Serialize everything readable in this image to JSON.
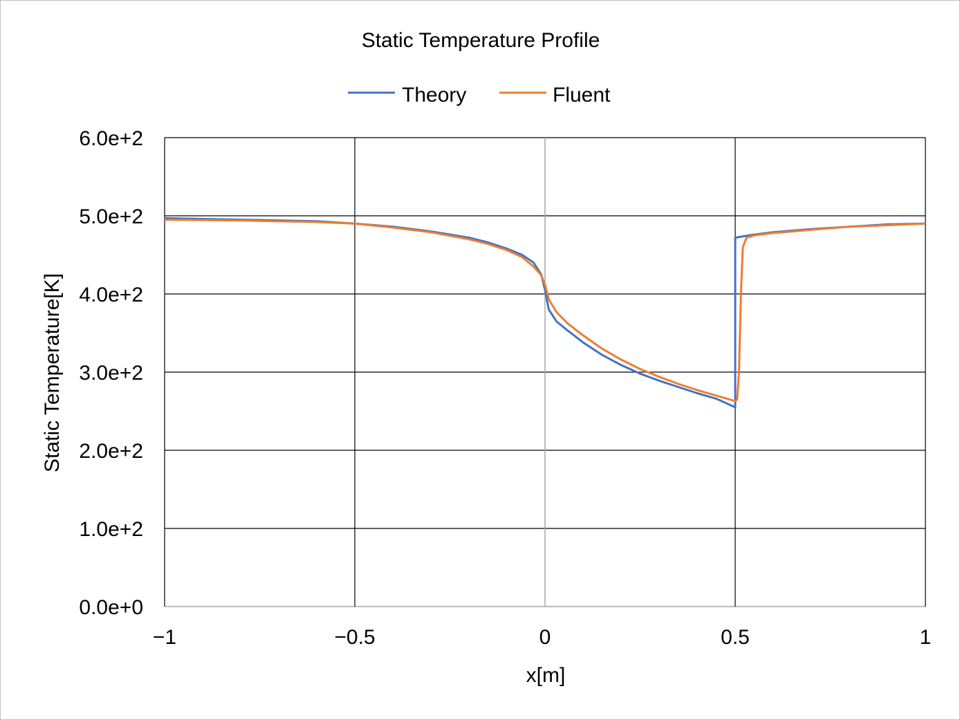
{
  "chart_data": {
    "type": "line",
    "title": "Static Temperature Profile",
    "xlabel": "x[m]",
    "ylabel": "Static Temperature[K]",
    "xlim": [
      -1,
      1
    ],
    "ylim": [
      0,
      600
    ],
    "grid": true,
    "legend_position": "top-center",
    "x_ticks": [
      {
        "value": -1,
        "label": "−1"
      },
      {
        "value": -0.5,
        "label": "−0.5"
      },
      {
        "value": 0,
        "label": "0"
      },
      {
        "value": 0.5,
        "label": "0.5"
      },
      {
        "value": 1,
        "label": "1"
      }
    ],
    "y_ticks": [
      {
        "value": 0,
        "label": "0.0e+0"
      },
      {
        "value": 100,
        "label": "1.0e+2"
      },
      {
        "value": 200,
        "label": "2.0e+2"
      },
      {
        "value": 300,
        "label": "3.0e+2"
      },
      {
        "value": 400,
        "label": "4.0e+2"
      },
      {
        "value": 500,
        "label": "5.0e+2"
      },
      {
        "value": 600,
        "label": "6.0e+2"
      }
    ],
    "series": [
      {
        "name": "Theory",
        "color": "#4472c4",
        "x": [
          -1.0,
          -0.8,
          -0.6,
          -0.5,
          -0.4,
          -0.3,
          -0.2,
          -0.15,
          -0.1,
          -0.06,
          -0.03,
          -0.01,
          0.0,
          0.01,
          0.03,
          0.06,
          0.1,
          0.15,
          0.2,
          0.25,
          0.3,
          0.35,
          0.4,
          0.45,
          0.5,
          0.5,
          0.55,
          0.6,
          0.7,
          0.8,
          0.9,
          1.0
        ],
        "y": [
          497,
          495,
          493,
          490,
          486,
          480,
          472,
          466,
          458,
          450,
          440,
          425,
          405,
          380,
          365,
          353,
          338,
          322,
          309,
          298,
          289,
          281,
          273,
          266,
          255,
          472,
          476,
          479,
          483,
          486,
          489,
          490
        ]
      },
      {
        "name": "Fluent",
        "color": "#ed7d31",
        "x": [
          -1.0,
          -0.8,
          -0.6,
          -0.5,
          -0.4,
          -0.3,
          -0.2,
          -0.15,
          -0.1,
          -0.06,
          -0.03,
          -0.01,
          0.0,
          0.01,
          0.03,
          0.06,
          0.1,
          0.15,
          0.2,
          0.25,
          0.3,
          0.35,
          0.4,
          0.45,
          0.5,
          0.505,
          0.51,
          0.515,
          0.52,
          0.53,
          0.55,
          0.6,
          0.7,
          0.8,
          0.9,
          1.0
        ],
        "y": [
          495,
          494,
          492,
          490,
          485,
          479,
          470,
          464,
          456,
          447,
          435,
          424,
          412,
          393,
          377,
          362,
          347,
          330,
          316,
          304,
          294,
          285,
          277,
          270,
          263,
          265,
          300,
          400,
          460,
          472,
          475,
          478,
          482,
          486,
          488,
          490
        ]
      }
    ]
  }
}
